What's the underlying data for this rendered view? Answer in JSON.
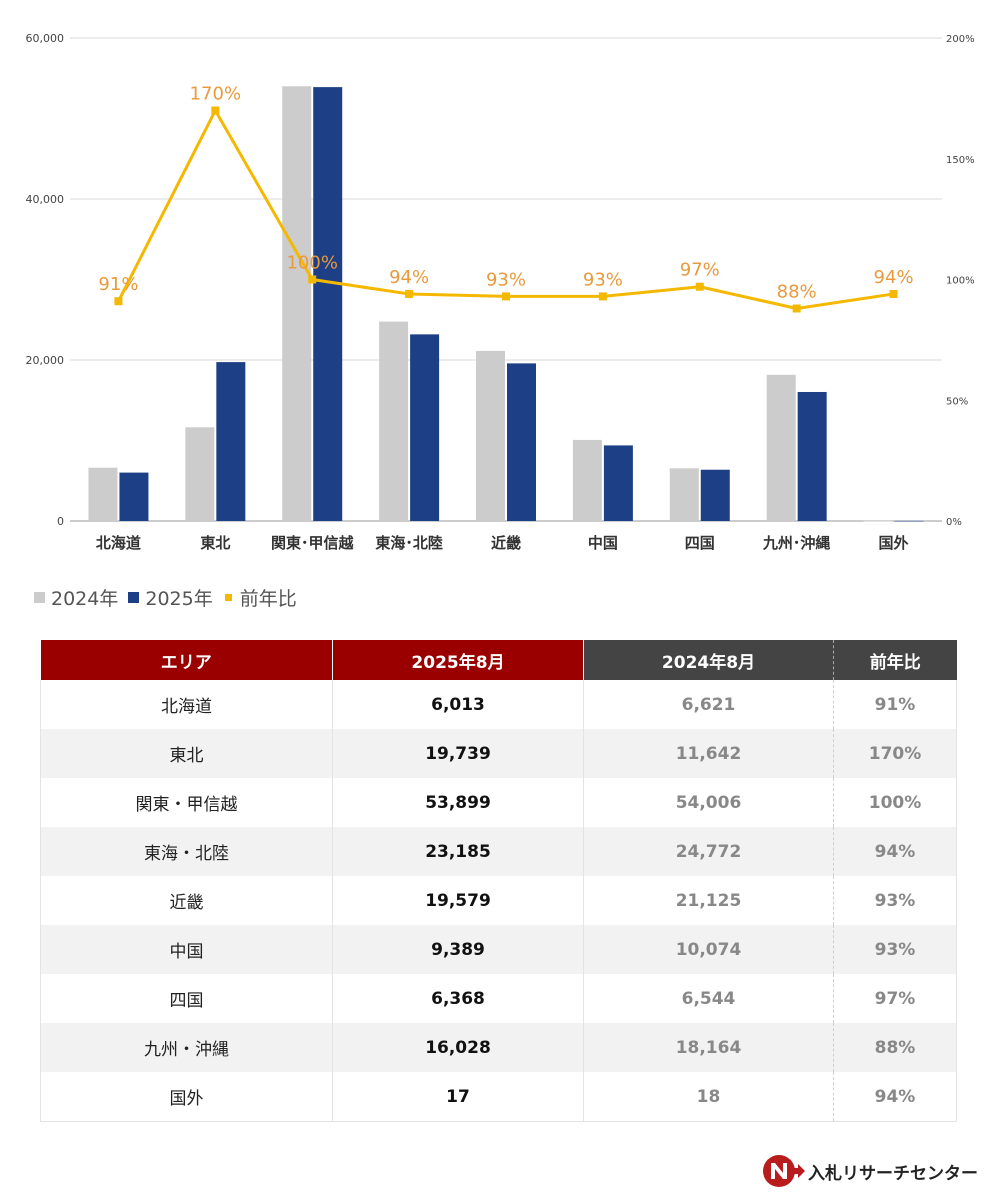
{
  "chart_data": {
    "type": "bar",
    "categories": [
      "北海道",
      "東北",
      "関東･甲信越",
      "東海･北陸",
      "近畿",
      "中国",
      "四国",
      "九州･沖縄",
      "国外"
    ],
    "series": [
      {
        "name": "2024年",
        "type": "bar",
        "color": "#cccccc",
        "values": [
          6621,
          11642,
          54006,
          24772,
          21125,
          10074,
          6544,
          18164,
          18
        ]
      },
      {
        "name": "2025年",
        "type": "bar",
        "color": "#1c3f85",
        "values": [
          6013,
          19739,
          53899,
          23185,
          19579,
          9389,
          6368,
          16028,
          17
        ]
      },
      {
        "name": "前年比",
        "type": "line",
        "axis": "right",
        "color": "#f5b800",
        "label_color": "#e89a3c",
        "values": [
          91,
          170,
          100,
          94,
          93,
          93,
          97,
          88,
          94
        ]
      }
    ],
    "data_labels": [
      "91%",
      "170%",
      "100%",
      "94%",
      "93%",
      "93%",
      "97%",
      "88%",
      "94%"
    ],
    "ylim": [
      0,
      60000
    ],
    "yticks": [
      "0",
      "20,000",
      "40,000",
      "60,000"
    ],
    "y2lim": [
      0,
      200
    ],
    "y2ticks": [
      "0%",
      "50%",
      "100%",
      "150%",
      "200%"
    ],
    "grid": true,
    "legend": "bottom-left"
  },
  "table": {
    "headers": {
      "area": "エリア",
      "y2025": "2025年8月",
      "y2024": "2024年8月",
      "ratio": "前年比"
    },
    "rows": [
      {
        "area": "北海道",
        "y2025": "6,013",
        "y2024": "6,621",
        "ratio": "91%"
      },
      {
        "area": "東北",
        "y2025": "19,739",
        "y2024": "11,642",
        "ratio": "170%"
      },
      {
        "area": "関東・甲信越",
        "y2025": "53,899",
        "y2024": "54,006",
        "ratio": "100%"
      },
      {
        "area": "東海・北陸",
        "y2025": "23,185",
        "y2024": "24,772",
        "ratio": "94%"
      },
      {
        "area": "近畿",
        "y2025": "19,579",
        "y2024": "21,125",
        "ratio": "93%"
      },
      {
        "area": "中国",
        "y2025": "9,389",
        "y2024": "10,074",
        "ratio": "93%"
      },
      {
        "area": "四国",
        "y2025": "6,368",
        "y2024": "6,544",
        "ratio": "97%"
      },
      {
        "area": "九州・沖縄",
        "y2025": "16,028",
        "y2024": "18,164",
        "ratio": "88%"
      },
      {
        "area": "国外",
        "y2025": "17",
        "y2024": "18",
        "ratio": "94%"
      }
    ]
  },
  "brand": {
    "name": "入札リサーチセンター",
    "logo_icon": "n-arrow-logo-icon",
    "logo_color": "#b81c1c"
  }
}
